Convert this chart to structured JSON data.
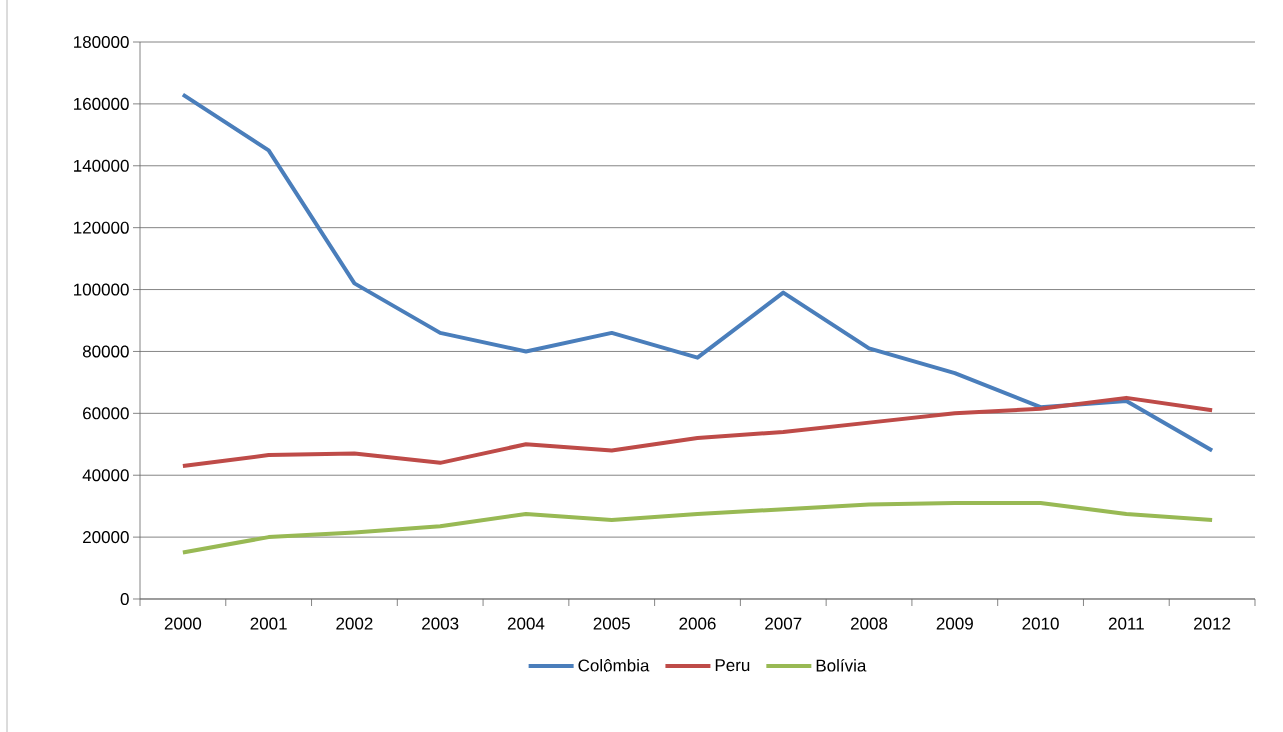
{
  "chart_data": {
    "type": "line",
    "categories": [
      "2000",
      "2001",
      "2002",
      "2003",
      "2004",
      "2005",
      "2006",
      "2007",
      "2008",
      "2009",
      "2010",
      "2011",
      "2012"
    ],
    "series": [
      {
        "name": "Colômbia",
        "color": "#4a7ebb",
        "values": [
          163000,
          145000,
          102000,
          86000,
          80000,
          86000,
          78000,
          99000,
          81000,
          73000,
          62000,
          64000,
          48000
        ]
      },
      {
        "name": "Peru",
        "color": "#be4b48",
        "values": [
          43000,
          46500,
          47000,
          44000,
          50000,
          48000,
          52000,
          54000,
          57000,
          60000,
          61500,
          65000,
          61000
        ]
      },
      {
        "name": "Bolívia",
        "color": "#98b954",
        "values": [
          15000,
          20000,
          21500,
          23500,
          27500,
          25500,
          27500,
          29000,
          30500,
          31000,
          31000,
          27500,
          25500
        ]
      }
    ],
    "ylim": [
      0,
      180000
    ],
    "yticks": [
      0,
      20000,
      40000,
      60000,
      80000,
      100000,
      120000,
      140000,
      160000,
      180000
    ],
    "grid": "y",
    "legend": "bottom"
  }
}
